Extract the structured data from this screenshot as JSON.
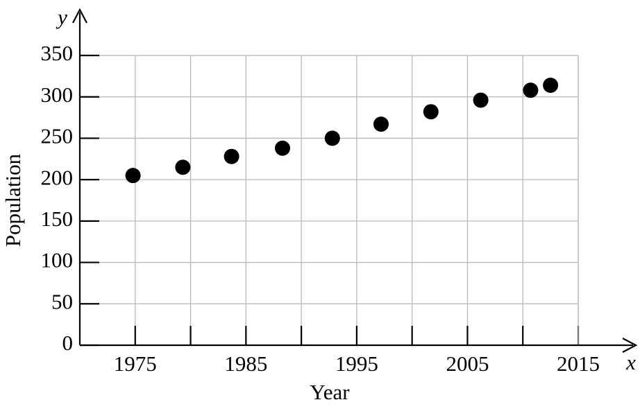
{
  "chart_data": {
    "type": "scatter",
    "x_label": "Year",
    "y_label": "Population",
    "x_symbol": "x",
    "y_symbol": "y",
    "x": [
      1974.8,
      1979.3,
      1983.7,
      1988.3,
      1992.8,
      1997.2,
      2001.7,
      2006.2,
      2010.7,
      2012.5
    ],
    "values": [
      205,
      215,
      228,
      238,
      250,
      267,
      282,
      296,
      308,
      314
    ],
    "color": "#000000",
    "xlim": [
      1970,
      2015
    ],
    "xticks": [
      1975,
      1985,
      1995,
      2005,
      2015
    ],
    "xminor": [
      1980,
      1990,
      2000,
      2010
    ],
    "ylim": [
      0,
      350
    ],
    "yticks": [
      0,
      50,
      100,
      150,
      200,
      250,
      300,
      350
    ],
    "grid": true
  }
}
